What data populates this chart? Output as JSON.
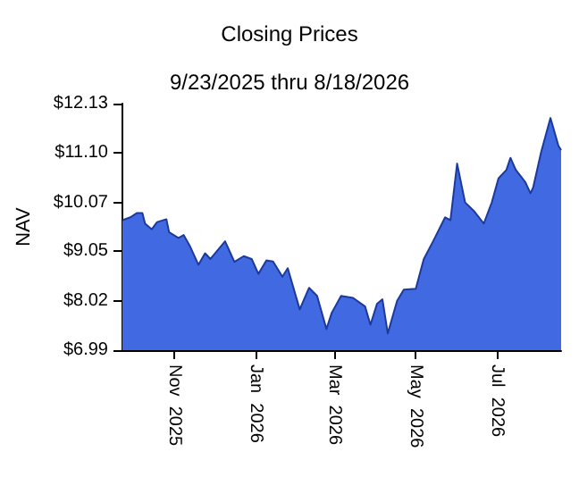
{
  "chart_data": {
    "type": "area",
    "title": "Closing Prices",
    "subtitle": "9/23/2025 thru 8/18/2026",
    "ylabel": "NAV",
    "x": [
      "2025-09-23",
      "2025-09-29",
      "2025-10-04",
      "2025-10-08",
      "2025-10-10",
      "2025-10-15",
      "2025-10-19",
      "2025-10-26",
      "2025-10-28",
      "2025-11-04",
      "2025-11-08",
      "2025-11-13",
      "2025-11-19",
      "2025-11-24",
      "2025-11-28",
      "2025-12-09",
      "2025-12-16",
      "2025-12-23",
      "2025-12-29",
      "2026-01-03",
      "2026-01-09",
      "2026-01-14",
      "2026-01-21",
      "2026-01-25",
      "2026-02-03",
      "2026-02-10",
      "2026-02-16",
      "2026-02-23",
      "2026-02-27",
      "2026-03-06",
      "2026-03-15",
      "2026-03-24",
      "2026-03-28",
      "2026-04-02",
      "2026-04-06",
      "2026-04-10",
      "2026-04-17",
      "2026-04-22",
      "2026-05-01",
      "2026-05-07",
      "2026-05-14",
      "2026-05-23",
      "2026-05-27",
      "2026-06-01",
      "2026-06-07",
      "2026-06-14",
      "2026-06-21",
      "2026-06-27",
      "2026-07-02",
      "2026-07-08",
      "2026-07-11",
      "2026-07-15",
      "2026-07-22",
      "2026-07-26",
      "2026-07-28",
      "2026-08-03",
      "2026-08-10",
      "2026-08-16",
      "2026-08-18"
    ],
    "series": [
      {
        "color": "#4169e1",
        "values": [
          9.7,
          9.76,
          9.85,
          9.85,
          9.63,
          9.51,
          9.66,
          9.72,
          9.45,
          9.33,
          9.39,
          9.14,
          8.77,
          9.01,
          8.89,
          9.26,
          8.83,
          8.95,
          8.89,
          8.58,
          8.86,
          8.84,
          8.52,
          8.7,
          7.84,
          8.29,
          8.12,
          7.43,
          7.77,
          8.12,
          8.08,
          7.9,
          7.52,
          7.96,
          8.05,
          7.34,
          8.02,
          8.25,
          8.27,
          8.89,
          9.26,
          9.76,
          9.7,
          10.88,
          10.07,
          9.88,
          9.63,
          10.07,
          10.57,
          10.75,
          11.0,
          10.75,
          10.5,
          10.26,
          10.38,
          11.12,
          11.83,
          11.25,
          11.16
        ]
      }
    ],
    "xlim": [
      "2025-09-23",
      "2026-08-18"
    ],
    "xticks": [
      {
        "value": "2025-11-01",
        "label": "Nov  2025"
      },
      {
        "value": "2026-01-01",
        "label": "Jan  2026"
      },
      {
        "value": "2026-03-01",
        "label": "Mar  2026"
      },
      {
        "value": "2026-05-01",
        "label": "May  2026"
      },
      {
        "value": "2026-07-01",
        "label": "Jul  2026"
      }
    ],
    "ylim": [
      6.99,
      12.13
    ],
    "yticks": [
      {
        "value": 6.99,
        "label": "$6.99"
      },
      {
        "value": 8.02,
        "label": "$8.02"
      },
      {
        "value": 9.05,
        "label": "$9.05"
      },
      {
        "value": 10.07,
        "label": "$10.07"
      },
      {
        "value": 11.1,
        "label": "$11.10"
      },
      {
        "value": 12.13,
        "label": "$12.13"
      }
    ],
    "grid": false,
    "marker": "none",
    "line_style": "solid"
  }
}
